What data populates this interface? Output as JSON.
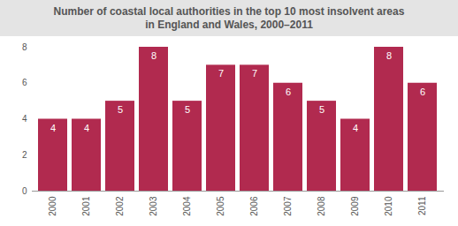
{
  "chart_data": {
    "type": "bar",
    "title": "Number of coastal local authorities in the top 10 most insolvent areas in England and Wales, 2000–2011",
    "categories": [
      "2000",
      "2001",
      "2002",
      "2003",
      "2004",
      "2005",
      "2006",
      "2007",
      "2008",
      "2009",
      "2010",
      "2011"
    ],
    "values": [
      4,
      4,
      5,
      8,
      5,
      7,
      7,
      6,
      5,
      4,
      8,
      6
    ],
    "color": "#b12a4f",
    "ylim": [
      0,
      8
    ],
    "yticks": [
      0,
      2,
      4,
      6,
      8
    ],
    "grid": false,
    "data_labels": true
  }
}
